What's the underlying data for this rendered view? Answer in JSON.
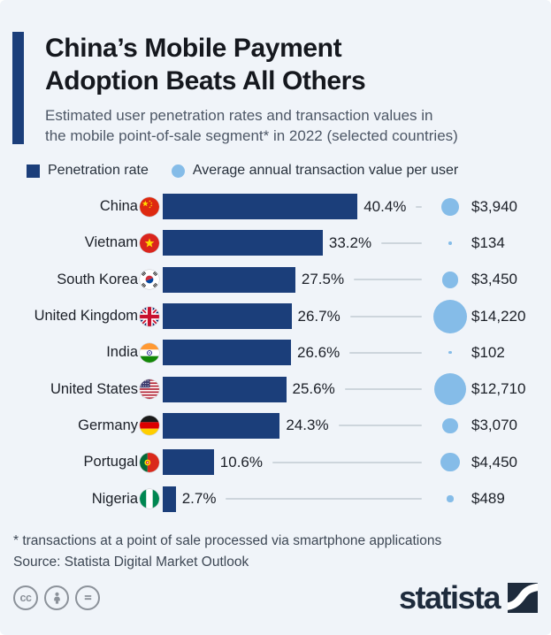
{
  "header": {
    "title_line1": "China’s Mobile Payment",
    "title_line2": "Adoption Beats All Others",
    "subtitle_line1": "Estimated user penetration rates and transaction values in",
    "subtitle_line2": "the mobile point-of-sale segment* in 2022 (selected countries)"
  },
  "legend": {
    "bar_label": "Penetration rate",
    "bubble_label": "Average annual transaction value per user"
  },
  "chart_data": {
    "type": "bar",
    "title": "China’s Mobile Payment Adoption Beats All Others",
    "categories": [
      "China",
      "Vietnam",
      "South Korea",
      "United Kingdom",
      "India",
      "United States",
      "Germany",
      "Portugal",
      "Nigeria"
    ],
    "series": [
      {
        "name": "Penetration rate",
        "unit": "%",
        "values": [
          40.4,
          33.2,
          27.5,
          26.7,
          26.6,
          25.6,
          24.3,
          10.6,
          2.7
        ]
      },
      {
        "name": "Average annual transaction value per user",
        "unit": "USD",
        "values": [
          3940,
          134,
          3450,
          14220,
          102,
          12710,
          3070,
          4450,
          489
        ]
      }
    ],
    "xlim": [
      0,
      45
    ],
    "grid": false,
    "legend_position": "top",
    "bar_color": "#1b3e7a",
    "bubble_color": "#85bce8",
    "rows": [
      {
        "country": "China",
        "flag": "cn",
        "pct": 40.4,
        "pct_label": "40.4%",
        "value": 3940,
        "value_label": "$3,940"
      },
      {
        "country": "Vietnam",
        "flag": "vn",
        "pct": 33.2,
        "pct_label": "33.2%",
        "value": 134,
        "value_label": "$134"
      },
      {
        "country": "South Korea",
        "flag": "kr",
        "pct": 27.5,
        "pct_label": "27.5%",
        "value": 3450,
        "value_label": "$3,450"
      },
      {
        "country": "United Kingdom",
        "flag": "gb",
        "pct": 26.7,
        "pct_label": "26.7%",
        "value": 14220,
        "value_label": "$14,220"
      },
      {
        "country": "India",
        "flag": "in",
        "pct": 26.6,
        "pct_label": "26.6%",
        "value": 102,
        "value_label": "$102"
      },
      {
        "country": "United States",
        "flag": "us",
        "pct": 25.6,
        "pct_label": "25.6%",
        "value": 12710,
        "value_label": "$12,710"
      },
      {
        "country": "Germany",
        "flag": "de",
        "pct": 24.3,
        "pct_label": "24.3%",
        "value": 3070,
        "value_label": "$3,070"
      },
      {
        "country": "Portugal",
        "flag": "pt",
        "pct": 10.6,
        "pct_label": "10.6%",
        "value": 4450,
        "value_label": "$4,450"
      },
      {
        "country": "Nigeria",
        "flag": "ng",
        "pct": 2.7,
        "pct_label": "2.7%",
        "value": 489,
        "value_label": "$489"
      }
    ]
  },
  "footer": {
    "note": "* transactions at a point of sale processed via smartphone applications",
    "source": "Source: Statista Digital Market Outlook",
    "brand": "statista",
    "license_icons": [
      "cc-icon",
      "attribution-icon",
      "equal-icon"
    ],
    "cc_label": "cc"
  },
  "colors": {
    "background": "#f0f4f9",
    "accent": "#1b3e7a",
    "bar": "#1b3e7a",
    "bubble": "#85bce8",
    "title_text": "#15181e",
    "subtitle_text": "#4d5766",
    "footnote_text": "#3d4754",
    "brand_navy": "#1e2b3c",
    "connector_line": "#cdd5dc"
  }
}
